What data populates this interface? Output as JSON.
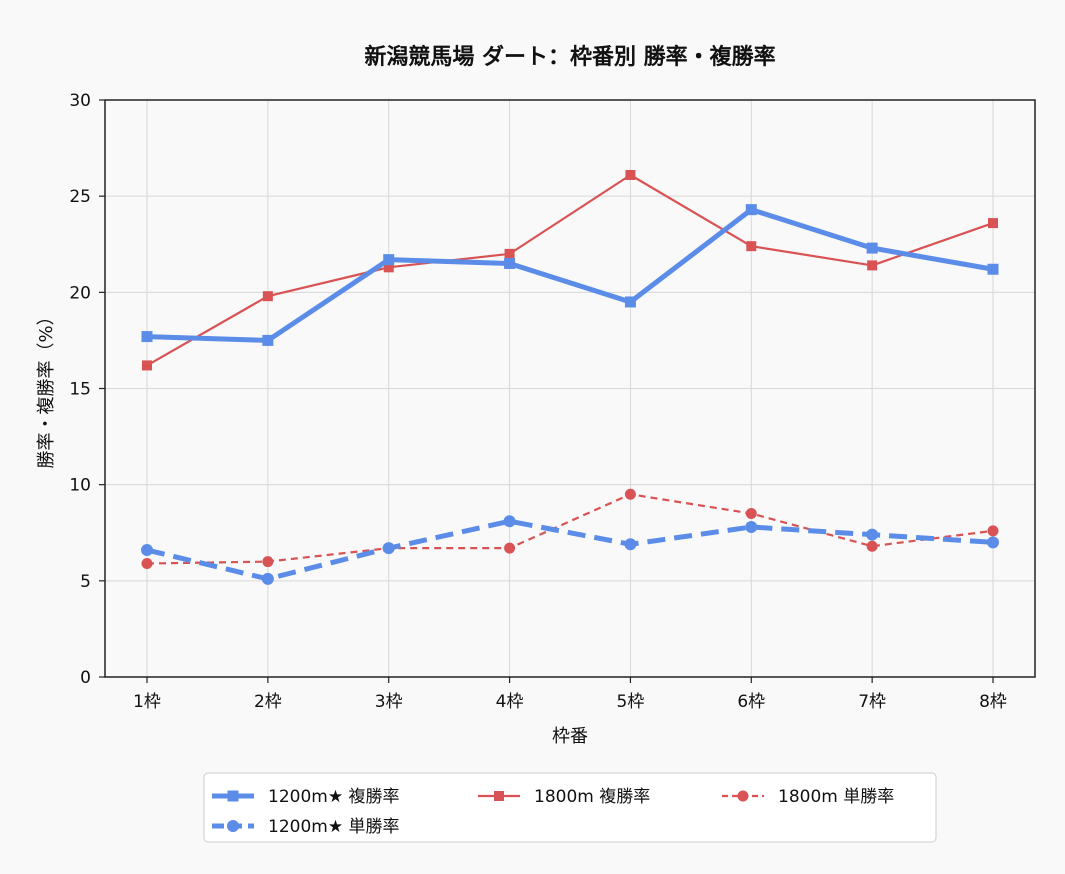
{
  "chart_data": {
    "type": "line",
    "title": "新潟競馬場 ダート：枠番別 勝率・複勝率",
    "xlabel": "枠番",
    "ylabel": "勝率・複勝率（%）",
    "categories": [
      "1枠",
      "2枠",
      "3枠",
      "4枠",
      "5枠",
      "6枠",
      "7枠",
      "8枠"
    ],
    "ylim": [
      0,
      30
    ],
    "yticks": [
      0,
      5,
      10,
      15,
      20,
      25,
      30
    ],
    "grid": true,
    "legend_position": "bottom",
    "series": [
      {
        "name": "1200m★ 複勝率",
        "values": [
          17.7,
          17.5,
          21.7,
          21.5,
          19.5,
          24.3,
          22.3,
          21.2
        ],
        "color": "#5b8de8",
        "style": "solid",
        "marker": "square",
        "width": "thick"
      },
      {
        "name": "1200m★ 単勝率",
        "values": [
          6.6,
          5.1,
          6.7,
          8.1,
          6.9,
          7.8,
          7.4,
          7.0
        ],
        "color": "#5b8de8",
        "style": "dashed",
        "marker": "circle",
        "width": "thick"
      },
      {
        "name": "1800m 複勝率",
        "values": [
          16.2,
          19.8,
          21.3,
          22.0,
          26.1,
          22.4,
          21.4,
          23.6
        ],
        "color": "#d95254",
        "style": "solid",
        "marker": "square",
        "width": "thin"
      },
      {
        "name": "1800m 単勝率",
        "values": [
          5.9,
          6.0,
          6.7,
          6.7,
          9.5,
          8.5,
          6.8,
          7.6
        ],
        "color": "#d95254",
        "style": "dashed",
        "marker": "circle",
        "width": "thin"
      }
    ]
  }
}
